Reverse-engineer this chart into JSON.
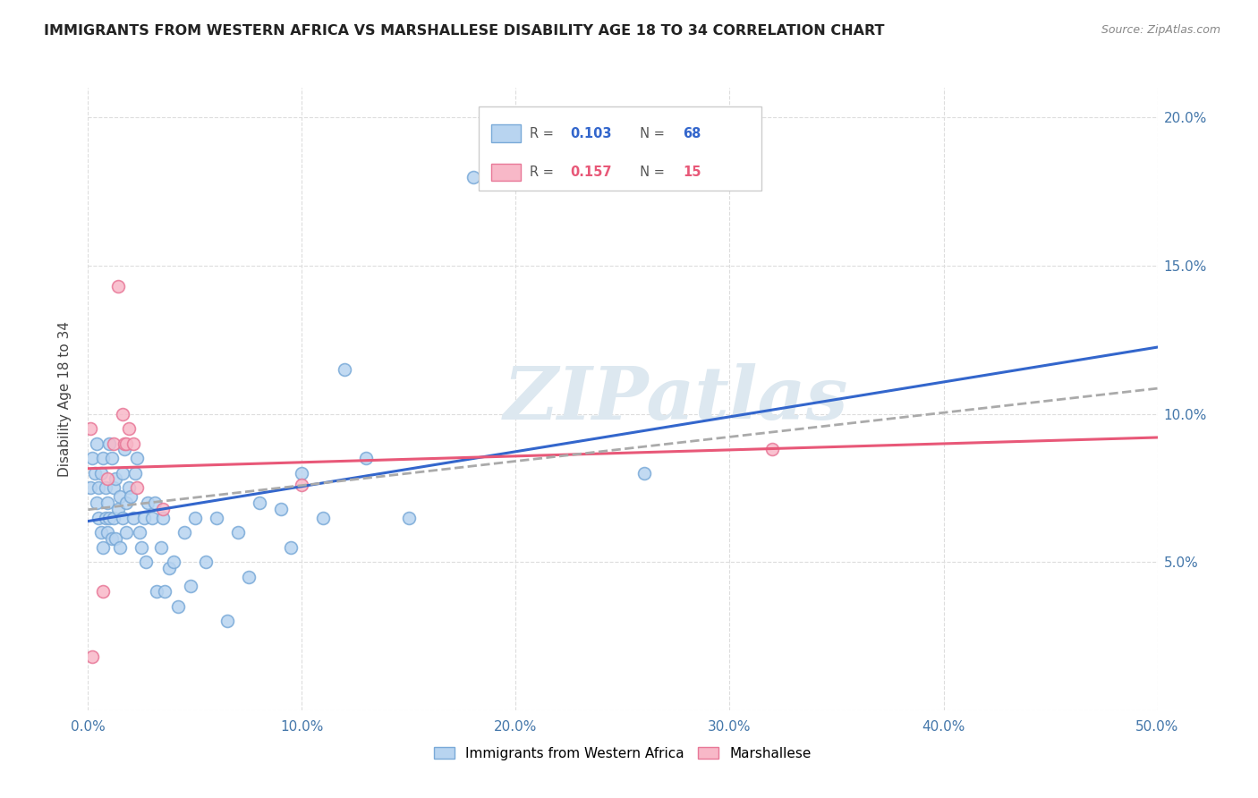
{
  "title": "IMMIGRANTS FROM WESTERN AFRICA VS MARSHALLESE DISABILITY AGE 18 TO 34 CORRELATION CHART",
  "source": "Source: ZipAtlas.com",
  "ylabel": "Disability Age 18 to 34",
  "ytick_values": [
    0.0,
    0.05,
    0.1,
    0.15,
    0.2
  ],
  "ytick_labels": [
    "",
    "5.0%",
    "10.0%",
    "15.0%",
    "20.0%"
  ],
  "xtick_values": [
    0.0,
    0.1,
    0.2,
    0.3,
    0.4,
    0.5
  ],
  "xtick_labels": [
    "0.0%",
    "10.0%",
    "20.0%",
    "30.0%",
    "40.0%",
    "50.0%"
  ],
  "xlim": [
    0.0,
    0.5
  ],
  "ylim": [
    0.0,
    0.21
  ],
  "R1": 0.103,
  "N1": 68,
  "R2": 0.157,
  "N2": 15,
  "scatter_color_1": "#b8d4f0",
  "scatter_edge_color_1": "#7aaad8",
  "scatter_color_2": "#f8b8c8",
  "scatter_edge_color_2": "#e87898",
  "line_color_1": "#3366cc",
  "line_color_2": "#e85878",
  "dash_color": "#aaaaaa",
  "watermark_text": "ZIPatlas",
  "watermark_color": "#dde8f0",
  "background_color": "#ffffff",
  "legend_box_color": "#ffffff",
  "legend_border_color": "#cccccc",
  "blue_label": "Immigrants from Western Africa",
  "pink_label": "Marshallese",
  "blue_points_x": [
    0.001,
    0.002,
    0.003,
    0.004,
    0.004,
    0.005,
    0.005,
    0.006,
    0.006,
    0.007,
    0.007,
    0.008,
    0.008,
    0.009,
    0.009,
    0.01,
    0.01,
    0.011,
    0.011,
    0.012,
    0.012,
    0.013,
    0.013,
    0.014,
    0.015,
    0.015,
    0.016,
    0.016,
    0.017,
    0.018,
    0.018,
    0.019,
    0.02,
    0.021,
    0.022,
    0.023,
    0.024,
    0.025,
    0.026,
    0.027,
    0.028,
    0.03,
    0.031,
    0.032,
    0.034,
    0.035,
    0.036,
    0.038,
    0.04,
    0.042,
    0.045,
    0.048,
    0.05,
    0.055,
    0.06,
    0.065,
    0.07,
    0.075,
    0.08,
    0.09,
    0.095,
    0.1,
    0.11,
    0.12,
    0.13,
    0.15,
    0.18,
    0.26
  ],
  "blue_points_y": [
    0.075,
    0.085,
    0.08,
    0.09,
    0.07,
    0.075,
    0.065,
    0.08,
    0.06,
    0.085,
    0.055,
    0.075,
    0.065,
    0.07,
    0.06,
    0.09,
    0.065,
    0.085,
    0.058,
    0.075,
    0.065,
    0.078,
    0.058,
    0.068,
    0.055,
    0.072,
    0.08,
    0.065,
    0.088,
    0.07,
    0.06,
    0.075,
    0.072,
    0.065,
    0.08,
    0.085,
    0.06,
    0.055,
    0.065,
    0.05,
    0.07,
    0.065,
    0.07,
    0.04,
    0.055,
    0.065,
    0.04,
    0.048,
    0.05,
    0.035,
    0.06,
    0.042,
    0.065,
    0.05,
    0.065,
    0.03,
    0.06,
    0.045,
    0.07,
    0.068,
    0.055,
    0.08,
    0.065,
    0.115,
    0.085,
    0.065,
    0.18,
    0.08
  ],
  "pink_points_x": [
    0.001,
    0.002,
    0.007,
    0.009,
    0.012,
    0.014,
    0.016,
    0.017,
    0.018,
    0.019,
    0.021,
    0.023,
    0.035,
    0.1,
    0.32
  ],
  "pink_points_y": [
    0.095,
    0.018,
    0.04,
    0.078,
    0.09,
    0.143,
    0.1,
    0.09,
    0.09,
    0.095,
    0.09,
    0.075,
    0.068,
    0.076,
    0.088
  ]
}
